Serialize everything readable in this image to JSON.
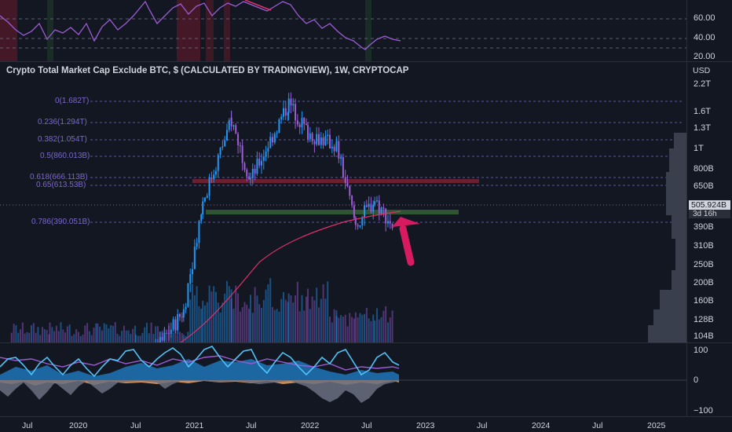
{
  "chart_title": "Crypto Total Market Cap Exclude BTC, $ (CALCULATED BY TRADINGVIEW), 1W, CRYPTOCAP",
  "rsi_axis": [
    "60.00",
    "40.00",
    "20.00"
  ],
  "price_axis": {
    "currency": "USD",
    "ticks": [
      "2.2T",
      "1.6T",
      "1.3T",
      "1T",
      "800B",
      "650B",
      "390B",
      "310B",
      "250B",
      "200B",
      "160B",
      "128B",
      "104B"
    ],
    "last_price": "505.924B",
    "countdown": "3d 16h"
  },
  "fib_levels": [
    {
      "label": "0(1.682T)"
    },
    {
      "label": "0.236(1.294T)"
    },
    {
      "label": "0.382(1.054T)"
    },
    {
      "label": "0.5(860.013B)"
    },
    {
      "label": "0.618(666.113B)"
    },
    {
      "label": "0.65(613.53B)"
    },
    {
      "label": "0.786(390.051B)"
    }
  ],
  "osc_axis": [
    "100",
    "0",
    "−100"
  ],
  "time_axis": [
    "Jul",
    "2020",
    "Jul",
    "2021",
    "Jul",
    "2022",
    "Jul",
    "2023",
    "Jul",
    "2024",
    "Jul",
    "2025"
  ],
  "colors": {
    "background": "#131722",
    "candle_up": "#2196f3",
    "candle_down": "#9c5cd4",
    "fib": "#5b4fb8",
    "resistance_zone": "#7a2230",
    "support_zone": "#2f5a34",
    "ma_line": "#e0306a",
    "arrow": "#d81b60",
    "rsi_line": "#9c5cd4",
    "wave_fast": "#4fc3f7",
    "wave_slow": "#9c5cd4"
  },
  "chart_data": {
    "type": "candlestick",
    "title": "Crypto Total Market Cap Exclude BTC, $ (CALCULATED BY TRADINGVIEW), 1W, CRYPTOCAP",
    "price_scale": "log",
    "currency": "USD",
    "ylim": [
      "104B",
      "2.2T"
    ],
    "last_value": "505.924B",
    "fib_retracement": [
      {
        "ratio": 0,
        "value": "1.682T"
      },
      {
        "ratio": 0.236,
        "value": "1.294T"
      },
      {
        "ratio": 0.382,
        "value": "1.054T"
      },
      {
        "ratio": 0.5,
        "value": "860.013B"
      },
      {
        "ratio": 0.618,
        "value": "666.113B"
      },
      {
        "ratio": 0.65,
        "value": "613.53B"
      },
      {
        "ratio": 0.786,
        "value": "390.051B"
      }
    ],
    "x_ticks": [
      "Jul",
      "2020",
      "Jul",
      "2021",
      "Jul",
      "2022",
      "Jul",
      "2023",
      "Jul",
      "2024",
      "Jul",
      "2025"
    ],
    "close_path_approx": [
      {
        "x": "2019-06",
        "y": 125
      },
      {
        "x": "2019-10",
        "y": 110
      },
      {
        "x": "2020-03",
        "y": 70
      },
      {
        "x": "2020-07",
        "y": 120
      },
      {
        "x": "2020-12",
        "y": 230
      },
      {
        "x": "2021-02",
        "y": 650
      },
      {
        "x": "2021-05",
        "y": 1400
      },
      {
        "x": "2021-07",
        "y": 800
      },
      {
        "x": "2021-11",
        "y": 1650
      },
      {
        "x": "2022-01",
        "y": 1250
      },
      {
        "x": "2022-04",
        "y": 1100
      },
      {
        "x": "2022-06",
        "y": 520
      },
      {
        "x": "2022-08",
        "y": 660
      },
      {
        "x": "2022-10",
        "y": 506
      }
    ]
  }
}
